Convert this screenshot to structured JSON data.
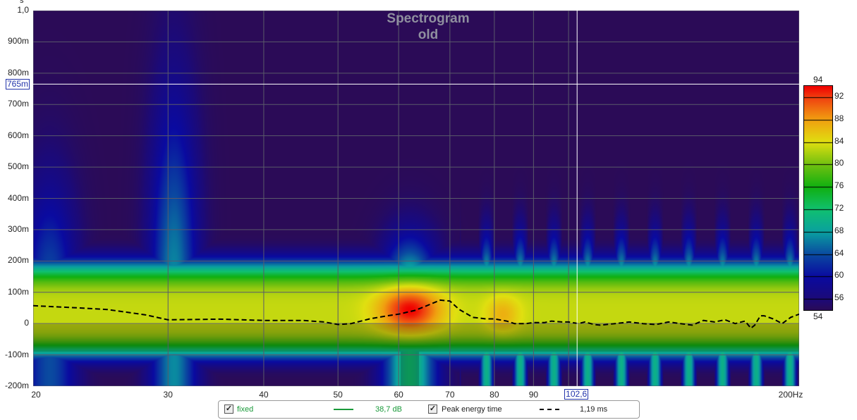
{
  "chart_data": {
    "type": "heatmap",
    "title": "Spectrogram",
    "subtitle": "old",
    "xlabel_unit": "Hz",
    "ylabel_unit": "s",
    "x_scale": "log",
    "xlim": [
      20,
      200
    ],
    "ylim": [
      -0.2,
      1.0
    ],
    "x_ticks": [
      "20",
      "30",
      "40",
      "50",
      "60",
      "70",
      "80",
      "90",
      "200Hz"
    ],
    "x_tick_values": [
      20,
      30,
      40,
      50,
      60,
      70,
      80,
      90,
      200
    ],
    "y_ticks": [
      "1,0",
      "900m",
      "800m",
      "700m",
      "600m",
      "500m",
      "400m",
      "300m",
      "200m",
      "100m",
      "0",
      "-100m",
      "-200m"
    ],
    "y_tick_values": [
      1.0,
      0.9,
      0.8,
      0.7,
      0.6,
      0.5,
      0.4,
      0.3,
      0.2,
      0.1,
      0,
      -0.1,
      -0.2
    ],
    "grid": true,
    "colorbar": {
      "min": 54,
      "max": 94,
      "ticks": [
        "94",
        "92",
        "88",
        "84",
        "80",
        "76",
        "72",
        "68",
        "64",
        "60",
        "56",
        "54"
      ],
      "tick_values": [
        94,
        92,
        88,
        84,
        80,
        76,
        72,
        68,
        64,
        60,
        56,
        54
      ],
      "colors": {
        "54": "#2b0b57",
        "56": "#1c0a78",
        "60": "#0a0aa0",
        "64": "#0a4aa0",
        "68": "#0aa0a0",
        "72": "#10c070",
        "76": "#10b010",
        "80": "#70c010",
        "84": "#e0e010",
        "88": "#f0a010",
        "92": "#f04010",
        "94": "#f00000"
      }
    },
    "series": [
      {
        "name": "Peak energy time",
        "style": "dashed",
        "color": "#000000",
        "x": [
          20,
          23,
          25,
          28,
          30,
          35,
          40,
          45,
          48,
          50,
          52,
          55,
          58,
          60,
          63,
          65,
          68,
          70,
          72,
          75,
          78,
          80,
          83,
          85,
          88,
          90,
          93,
          95,
          98,
          100,
          103,
          105,
          108,
          110,
          115,
          120,
          125,
          130,
          135,
          140,
          145,
          150,
          155,
          160,
          165,
          170,
          173,
          175,
          178,
          180,
          185,
          190,
          195,
          200
        ],
        "y_ms": [
          57,
          50,
          45,
          28,
          12,
          14,
          10,
          10,
          5,
          -3,
          0,
          15,
          25,
          30,
          42,
          55,
          75,
          72,
          45,
          20,
          15,
          15,
          8,
          0,
          0,
          3,
          3,
          8,
          5,
          5,
          0,
          5,
          -3,
          -5,
          0,
          5,
          0,
          -3,
          5,
          0,
          -5,
          10,
          5,
          12,
          0,
          8,
          -15,
          -5,
          25,
          25,
          15,
          0,
          20,
          30
        ]
      }
    ],
    "cursor": {
      "frequency_label": "102,6",
      "time_label": "765m",
      "frequency_hz": 102.6,
      "time_s": 0.765
    }
  },
  "legend": {
    "items": [
      {
        "label": "fixed",
        "checked": true,
        "value": "38,7 dB",
        "line_color": "#1a9a3a",
        "text_color": "#1a9a3a"
      },
      {
        "label": "Peak energy time",
        "checked": true,
        "value": "1,19 ms",
        "line_color": "#000000",
        "text_color": "#222222"
      }
    ]
  }
}
